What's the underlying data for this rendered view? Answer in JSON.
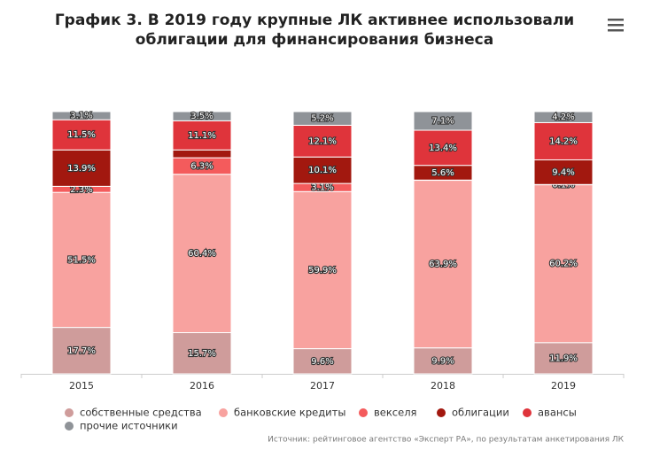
{
  "chart_data": {
    "type": "stacked_bar",
    "title": "График 3. В 2019 году крупные ЛК активнее использовали облигации для финансирования бизнеса",
    "source": "Источник: рейтинговое агентство «Эксперт РА», по результатам анкетирования ЛК",
    "categories": [
      "2015",
      "2016",
      "2017",
      "2018",
      "2019"
    ],
    "ylim": [
      0,
      100
    ],
    "series": [
      {
        "name": "собственные средства",
        "color": "#cf9c9b",
        "values": [
          17.7,
          15.7,
          9.6,
          9.9,
          11.9
        ],
        "value_labels": [
          "17.7%",
          "15.7%",
          "9.6%",
          "9.9%",
          "11.9%"
        ]
      },
      {
        "name": "банковские кредиты",
        "color": "#f8a29f",
        "values": [
          51.5,
          60.4,
          59.9,
          63.9,
          60.2
        ],
        "value_labels": [
          "51.5%",
          "60.4%",
          "59.9%",
          "63.9%",
          "60.2%"
        ]
      },
      {
        "name": "векселя",
        "color": "#f45b5c",
        "values": [
          2.3,
          6.3,
          3.1,
          0.1,
          0.1
        ],
        "value_labels": [
          "2.3%",
          "6.3%",
          "3.1%",
          null,
          "0.1%"
        ]
      },
      {
        "name": "облигации",
        "color": "#a2180f",
        "values": [
          13.9,
          3.0,
          10.1,
          5.6,
          9.4
        ],
        "value_labels": [
          "13.9%",
          null,
          "10.1%",
          "5.6%",
          "9.4%"
        ]
      },
      {
        "name": "авансы",
        "color": "#df343b",
        "values": [
          11.5,
          11.1,
          12.1,
          13.4,
          14.2
        ],
        "value_labels": [
          "11.5%",
          "11.1%",
          "12.1%",
          "13.4%",
          "14.2%"
        ]
      },
      {
        "name": "прочие источники",
        "color": "#8f9398",
        "values": [
          3.1,
          3.5,
          5.2,
          7.1,
          4.2
        ],
        "value_labels": [
          "3.1%",
          "3.5%",
          "5.2%",
          "7.1%",
          "4.2%"
        ]
      }
    ]
  }
}
